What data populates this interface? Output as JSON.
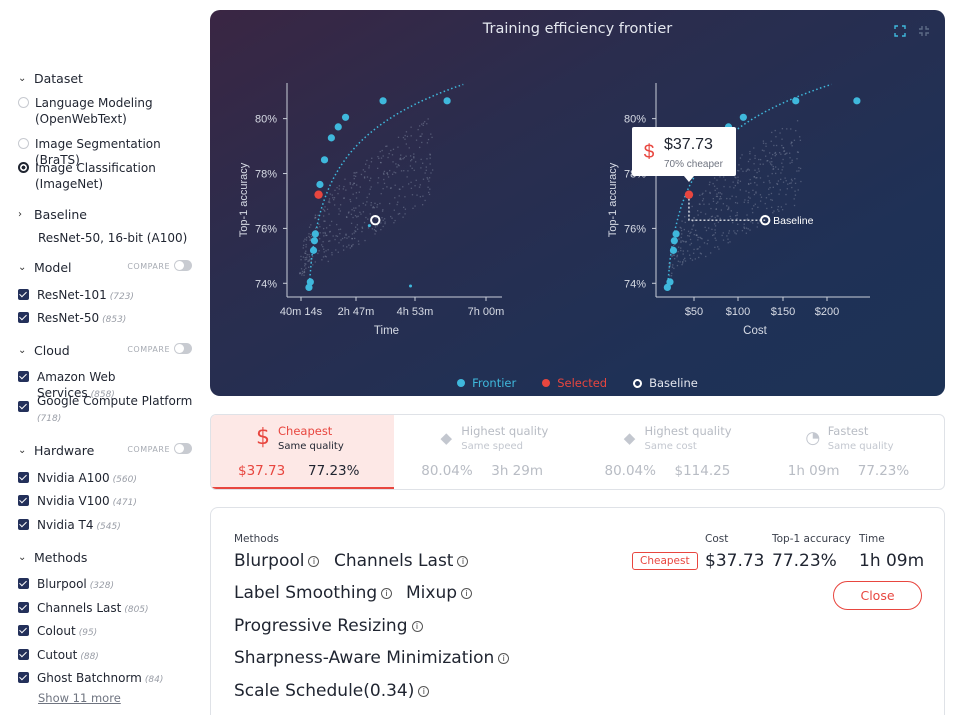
{
  "sidebar": {
    "dataset": {
      "title": "Dataset",
      "options": [
        {
          "label": "Language Modeling (OpenWebText)",
          "selected": false
        },
        {
          "label": "Image Segmentation (BraTS)",
          "selected": false
        },
        {
          "label": "Image Classification (ImageNet)",
          "selected": true
        }
      ]
    },
    "baseline": {
      "title": "Baseline",
      "value": "ResNet-50, 16-bit (A100)"
    },
    "model": {
      "title": "Model",
      "compare_label": "COMPARE",
      "items": [
        {
          "label": "ResNet-101",
          "count": "(723)"
        },
        {
          "label": "ResNet-50",
          "count": "(853)"
        }
      ]
    },
    "cloud": {
      "title": "Cloud",
      "compare_label": "COMPARE",
      "items": [
        {
          "label": "Amazon Web Services",
          "count": "(858)"
        },
        {
          "label": "Google Compute Platform",
          "count": "(718)"
        }
      ]
    },
    "hardware": {
      "title": "Hardware",
      "compare_label": "COMPARE",
      "items": [
        {
          "label": "Nvidia A100",
          "count": "(560)"
        },
        {
          "label": "Nvidia V100",
          "count": "(471)"
        },
        {
          "label": "Nvidia T4",
          "count": "(545)"
        }
      ]
    },
    "methods": {
      "title": "Methods",
      "items": [
        {
          "label": "Blurpool",
          "count": "(328)"
        },
        {
          "label": "Channels Last",
          "count": "(805)"
        },
        {
          "label": "Colout",
          "count": "(95)"
        },
        {
          "label": "Cutout",
          "count": "(88)"
        },
        {
          "label": "Ghost Batchnorm",
          "count": "(84)"
        }
      ],
      "show_more": "Show 11 more"
    }
  },
  "chart_panel": {
    "title": "Training efficiency frontier",
    "icons": [
      "expand-icon",
      "collapse-icon"
    ],
    "tooltip": {
      "price": "$37.73",
      "sub": "70% cheaper",
      "icon": "dollar-icon"
    },
    "baseline_label": "Baseline",
    "legend": [
      {
        "label": "Frontier",
        "color": "#3fb8dc"
      },
      {
        "label": "Selected",
        "color": "#e8463f"
      },
      {
        "label": "Baseline",
        "color": "#ffffff"
      }
    ]
  },
  "chart_data": [
    {
      "type": "scatter",
      "title": "",
      "xlabel": "Time",
      "ylabel": "Top-1 accuracy",
      "x_ticks": [
        "40m 14s",
        "2h 47m",
        "4h 53m",
        "7h 00m"
      ],
      "y_ticks": [
        "74%",
        "76%",
        "78%",
        "80%"
      ],
      "x_unit": "minutes",
      "xlim": [
        0,
        470
      ],
      "ylim": [
        73.5,
        81.3
      ],
      "series": [
        {
          "name": "Frontier",
          "x": [
            48,
            51,
            58,
            60,
            62,
            72,
            82,
            97,
            112,
            128,
            210,
            350
          ],
          "y": [
            73.85,
            74.05,
            75.2,
            75.55,
            75.8,
            77.6,
            78.5,
            79.3,
            79.7,
            80.05,
            80.65,
            80.65
          ]
        },
        {
          "name": "Selected",
          "x": [
            69
          ],
          "y": [
            77.23
          ]
        },
        {
          "name": "Baseline",
          "x": [
            193
          ],
          "y": [
            76.3
          ]
        }
      ],
      "grid": false
    },
    {
      "type": "scatter",
      "title": "",
      "xlabel": "Cost",
      "ylabel": "Top-1 accuracy",
      "x_ticks": [
        "$50",
        "$100",
        "$150",
        "$200"
      ],
      "y_ticks": [
        "74%",
        "76%",
        "78%",
        "80%"
      ],
      "xlim": [
        0,
        245
      ],
      "ylim": [
        73.5,
        81.3
      ],
      "series": [
        {
          "name": "Frontier",
          "x": [
            13,
            16,
            20,
            21,
            23,
            38,
            40,
            83,
            100,
            160,
            230
          ],
          "y": [
            73.85,
            74.05,
            75.2,
            75.55,
            75.8,
            78.5,
            79.3,
            79.7,
            80.05,
            80.65,
            80.65
          ]
        },
        {
          "name": "Selected",
          "x": [
            37.73
          ],
          "y": [
            77.23
          ]
        },
        {
          "name": "Baseline",
          "x": [
            125
          ],
          "y": [
            76.3
          ]
        }
      ],
      "grid": false
    }
  ],
  "tabs": [
    {
      "icon": "dollar-icon",
      "glyph": "$",
      "title": "Cheapest",
      "subtitle": "Same quality",
      "v1": "$37.73",
      "v2": "77.23%",
      "active": true
    },
    {
      "icon": "diamond-icon",
      "glyph": "◆",
      "title": "Highest quality",
      "subtitle": "Same speed",
      "v1": "80.04%",
      "v2": "3h 29m",
      "active": false
    },
    {
      "icon": "diamond-icon",
      "glyph": "◆",
      "title": "Highest quality",
      "subtitle": "Same cost",
      "v1": "80.04%",
      "v2": "$114.25",
      "active": false
    },
    {
      "icon": "speedometer-icon",
      "glyph": "◔",
      "title": "Fastest",
      "subtitle": "Same quality",
      "v1": "1h 09m",
      "v2": "77.23%",
      "active": false
    }
  ],
  "detail": {
    "methods_label": "Methods",
    "methods": [
      "Blurpool",
      "Channels Last",
      "Label Smoothing",
      "Mixup",
      "Progressive Resizing",
      "Sharpness-Aware Minimization",
      "Scale Schedule(0.34)"
    ],
    "badge": "Cheapest",
    "cost_label": "Cost",
    "cost_value": "$37.73",
    "acc_label": "Top-1 accuracy",
    "acc_value": "77.23%",
    "time_label": "Time",
    "time_value": "1h 09m",
    "close_label": "Close"
  }
}
